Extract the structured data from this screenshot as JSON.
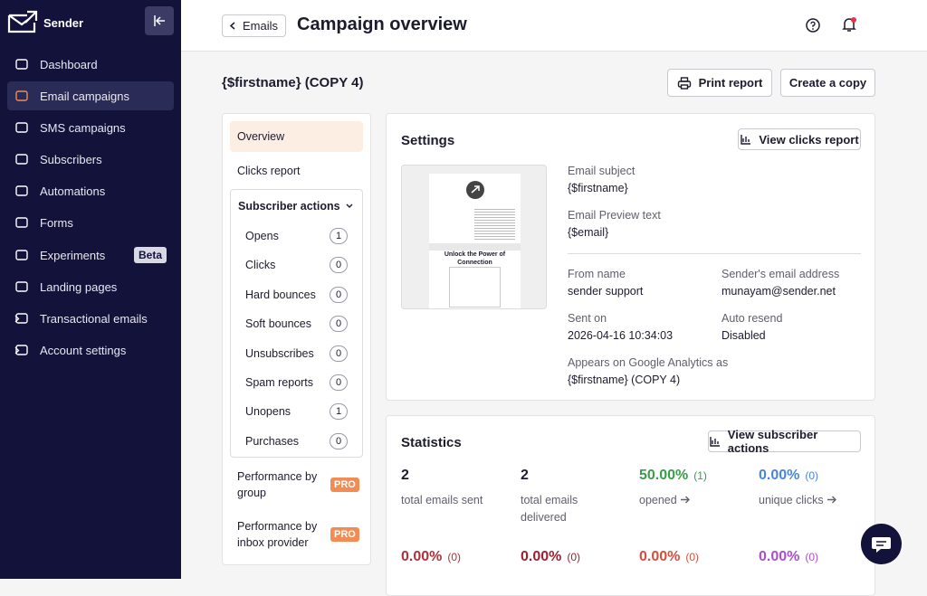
{
  "sidebar": {
    "brand": "Sender",
    "nav": [
      {
        "label": "Dashboard"
      },
      {
        "label": "Email campaigns"
      },
      {
        "label": "SMS campaigns"
      },
      {
        "label": "Subscribers"
      },
      {
        "label": "Automations"
      },
      {
        "label": "Forms"
      },
      {
        "label": "Experiments",
        "badge": "Beta"
      },
      {
        "label": "Landing pages"
      },
      {
        "label": "Transactional emails"
      },
      {
        "label": "Account settings"
      }
    ]
  },
  "header": {
    "back": "Emails",
    "title": "Campaign overview"
  },
  "campaign": {
    "name": "{$firstname} (COPY 4)",
    "print": "Print report",
    "copy": "Create a copy"
  },
  "menu": {
    "overview": "Overview",
    "clicks": "Clicks report",
    "subscriber_actions": {
      "title": "Subscriber actions",
      "items": [
        {
          "label": "Opens",
          "count": 1
        },
        {
          "label": "Clicks",
          "count": 0
        },
        {
          "label": "Hard bounces",
          "count": 0
        },
        {
          "label": "Soft bounces",
          "count": 0
        },
        {
          "label": "Unsubscribes",
          "count": 0
        },
        {
          "label": "Spam reports",
          "count": 0
        },
        {
          "label": "Unopens",
          "count": 1
        },
        {
          "label": "Purchases",
          "count": 0
        }
      ]
    },
    "performance": [
      {
        "label": "Performance by group",
        "badge": "PRO"
      },
      {
        "label": "Performance by inbox provider",
        "badge": "PRO"
      }
    ]
  },
  "settings": {
    "title": "Settings",
    "button": "View clicks report",
    "preview_heading": "Unlock the Power of Connection",
    "fields": [
      {
        "label": "Email subject",
        "value": "{$firstname}"
      },
      {
        "label": "Email Preview text",
        "value": "{$email}"
      },
      {
        "label": "From name",
        "value": "sender support"
      },
      {
        "label": "Sender's email address",
        "value": "munayam@sender.net"
      },
      {
        "label": "Sent on",
        "value": "2026-04-16 10:34:03"
      },
      {
        "label": "Auto resend",
        "value": "Disabled"
      },
      {
        "label": "Appears on Google Analytics as",
        "value": "{$firstname} (COPY 4)"
      }
    ]
  },
  "statistics": {
    "title": "Statistics",
    "button": "View subscriber actions",
    "row1": [
      {
        "value": 2,
        "label": "total emails sent"
      },
      {
        "value": 2,
        "label": "total emails delivered"
      },
      {
        "value": "50.00%",
        "count": "(1)",
        "label": "opened"
      },
      {
        "value": "0.00%",
        "count": "(0)",
        "label": "unique clicks"
      }
    ],
    "row2": [
      {
        "value": "0.00%",
        "count": "(0)"
      },
      {
        "value": "0.00%",
        "count": "(0)"
      },
      {
        "value": "0.00%",
        "count": "(0)"
      },
      {
        "value": "0.00%",
        "count": "(0)"
      }
    ]
  }
}
